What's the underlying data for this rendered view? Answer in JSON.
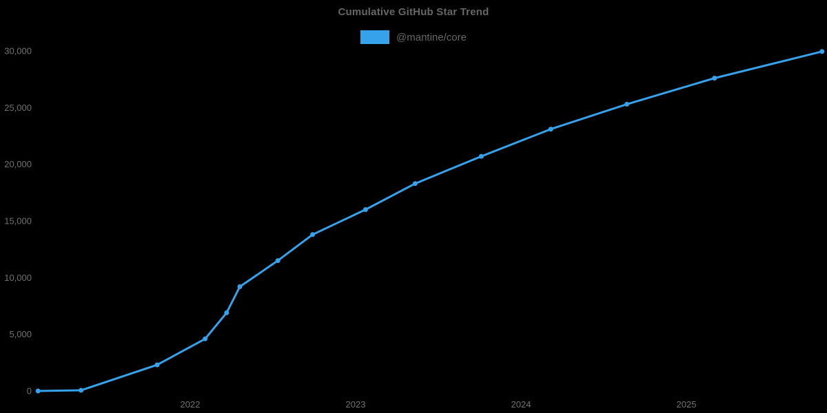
{
  "page": {
    "background_color": "#000000",
    "text_color": "#666666",
    "tick_color": "#717171"
  },
  "header": {
    "title": "Cumulative GitHub Star Trend"
  },
  "legend": {
    "items": [
      {
        "label": "@mantine/core",
        "color": "#36a2eb"
      }
    ]
  },
  "chart_data": {
    "type": "line",
    "title": "Cumulative GitHub Star Trend",
    "xlabel": "",
    "ylabel": "",
    "grid": false,
    "legend_position": "top",
    "marker": "circle",
    "line_width": 3,
    "xlim": [
      2021.05,
      2025.85
    ],
    "ylim": [
      0,
      30000
    ],
    "x_ticks": {
      "values": [
        2022,
        2023,
        2024,
        2025
      ],
      "labels": [
        "2022",
        "2023",
        "2024",
        "2025"
      ]
    },
    "y_ticks": {
      "values": [
        0,
        5000,
        10000,
        15000,
        20000,
        25000,
        30000
      ],
      "labels": [
        "0",
        "5,000",
        "10,000",
        "15,000",
        "20,000",
        "25,000",
        "30,000"
      ]
    },
    "series": [
      {
        "name": "@mantine/core",
        "color": "#36a2eb",
        "x": [
          2021.08,
          2021.34,
          2021.8,
          2022.09,
          2022.22,
          2022.3,
          2022.53,
          2022.74,
          2023.06,
          2023.36,
          2023.76,
          2024.18,
          2024.64,
          2025.17,
          2025.82
        ],
        "y": [
          0,
          60,
          2300,
          4600,
          6900,
          9200,
          11500,
          13800,
          16000,
          18300,
          20700,
          23100,
          25300,
          27600,
          29950
        ]
      }
    ]
  }
}
